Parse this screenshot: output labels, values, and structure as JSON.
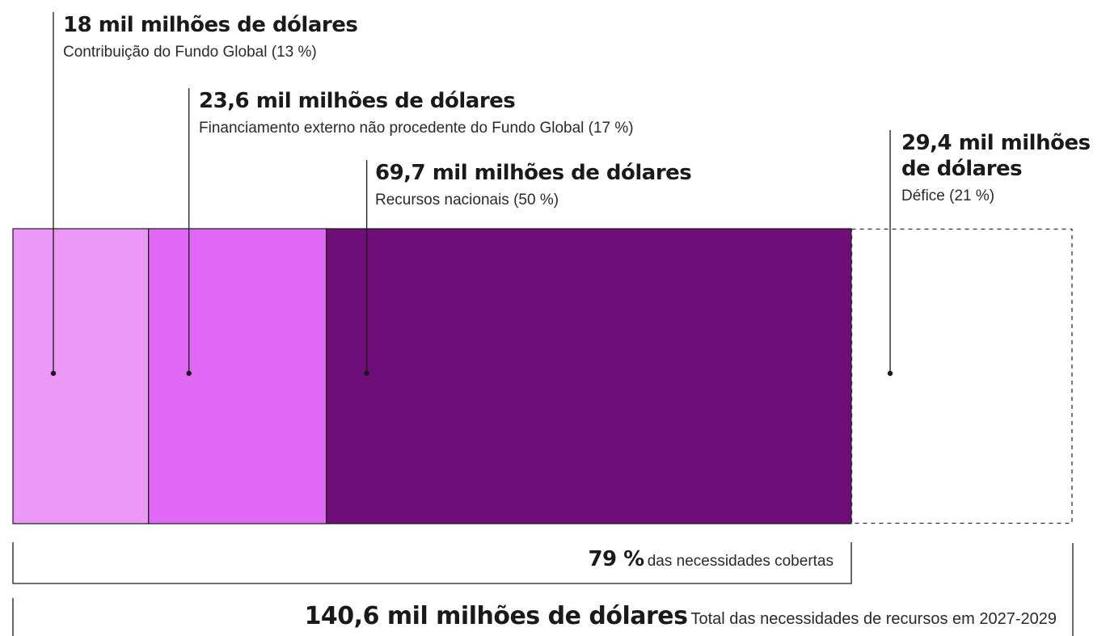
{
  "chart_data": {
    "type": "bar",
    "orientation": "horizontal-stacked",
    "unit": "mil milhões de dólares",
    "segments": [
      {
        "value": 18,
        "share_pct": 13,
        "amount_label": "18 mil milhões de dólares",
        "description": "Contribuição do Fundo Global (13 %)",
        "color": "#EB98F6",
        "style": "solid"
      },
      {
        "value": 23.6,
        "share_pct": 17,
        "amount_label": "23,6 mil milhões de dólares",
        "description": "Financiamento externo não procedente do Fundo Global (17 %)",
        "color": "#DF68F5",
        "style": "solid"
      },
      {
        "value": 69.7,
        "share_pct": 50,
        "amount_label": "69,7 mil milhões de dólares",
        "description": "Recursos nacionais (50 %)",
        "color": "#700E79",
        "style": "solid"
      },
      {
        "value": 29.4,
        "share_pct": 21,
        "amount_label": "29,4 mil milhões de dólares",
        "description": "Défice (21 %)",
        "color": "#ffffff",
        "style": "dashed"
      }
    ],
    "total": 140.6,
    "covered": {
      "pct_label": "79 %",
      "text": "das necessidades cobertas"
    },
    "total_label": {
      "amount": "140,6 mil milhões de dólares",
      "text": "Total das necessidades de recursos em 2027-2029"
    }
  }
}
